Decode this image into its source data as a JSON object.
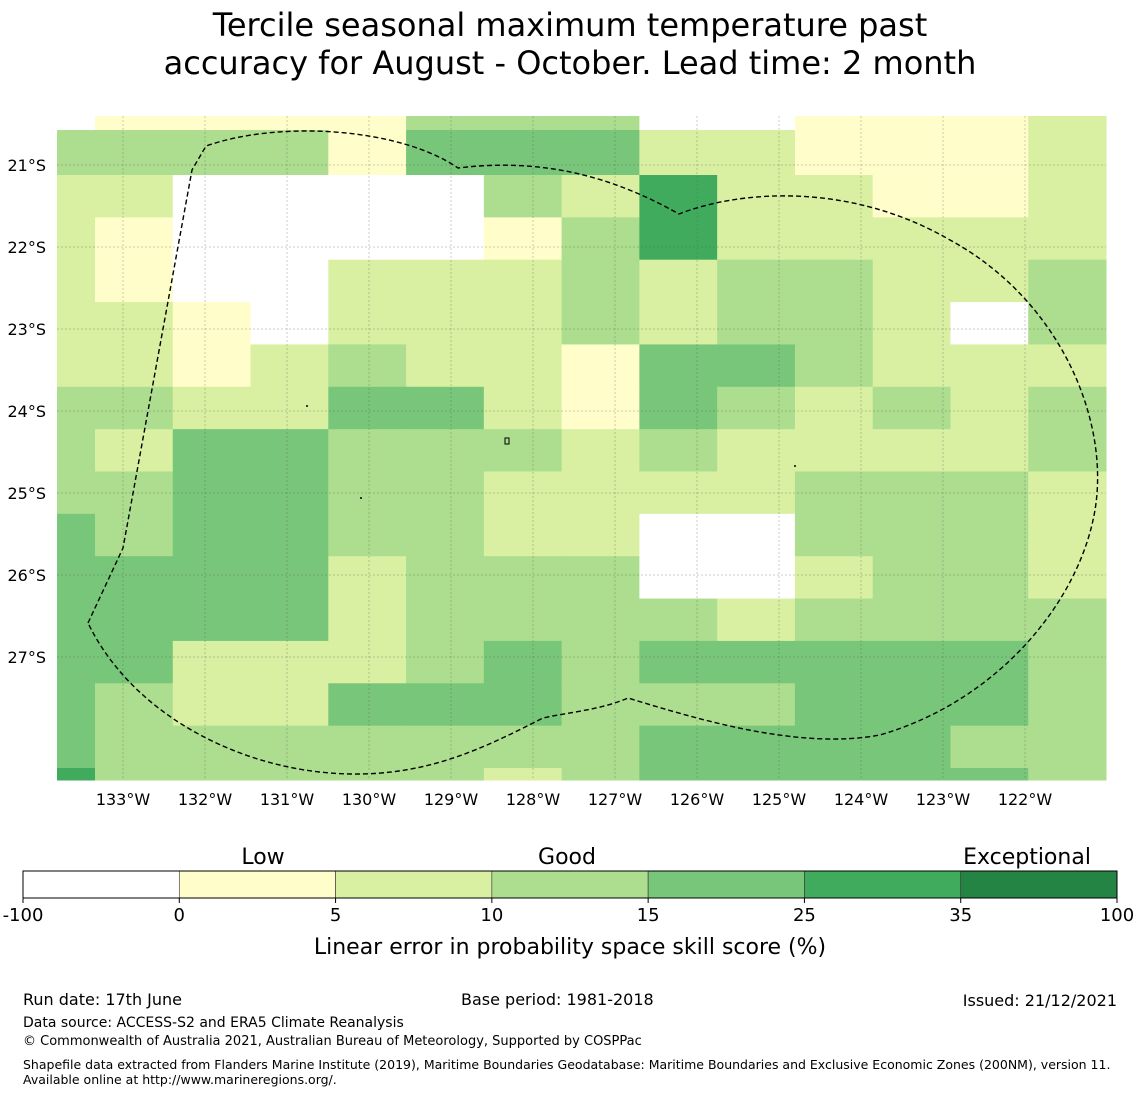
{
  "title_line1": "Tercile seasonal maximum temperature past",
  "title_line2": "accuracy for August - October. Lead time: 2 month",
  "map": {
    "lon_labels": [
      "133°W",
      "132°W",
      "131°W",
      "130°W",
      "129°W",
      "128°W",
      "127°W",
      "126°W",
      "125°W",
      "124°W",
      "123°W",
      "122°W"
    ],
    "lat_labels": [
      "21°S",
      "22°S",
      "23°S",
      "24°S",
      "25°S",
      "26°S",
      "27°S"
    ],
    "grid_rows_top_to_bottom": [
      "33331444221112",
      "22000032522112",
      "21000013522222",
      "21002223233223",
      "22102223233203",
      "22123221443222",
      "33224421432323",
      "32443332322223",
      "33443322223332",
      "43443322003332",
      "44442333002332",
      "44442333323333",
      "44222343444443",
      "43224443334443",
      "43333333444433"
    ],
    "bottom_strip": "53333323444443",
    "top_partial_row": "01111333001112",
    "colors": {
      "0": "#ffffff",
      "1": "#fffdc9",
      "2": "#d9efa2",
      "3": "#addd8e",
      "4": "#78c679",
      "5": "#41ab5d",
      "6": "#238443"
    }
  },
  "colorbar": {
    "category_labels": [
      "Low",
      "Good",
      "Exceptional"
    ],
    "tick_labels": [
      "-100",
      "0",
      "5",
      "10",
      "15",
      "25",
      "35",
      "100"
    ],
    "label": "Linear error in probability space skill score (%)"
  },
  "footer": {
    "run_date": "Run date: 17th June",
    "base_period": "Base period: 1981-2018",
    "issued": "Issued: 21/12/2021",
    "data_source": "Data source: ACCESS-S2 and ERA5 Climate Reanalysis",
    "copyright": "© Commonwealth of Australia 2021, Australian Bureau of Meteorology, Supported by COSPPac",
    "shapefile": "Shapefile data extracted from Flanders Marine Institute (2019), Maritime Boundaries Geodatabase: Maritime Boundaries and Exclusive Economic Zones (200NM), version 11. Available online at http://www.marineregions.org/."
  }
}
